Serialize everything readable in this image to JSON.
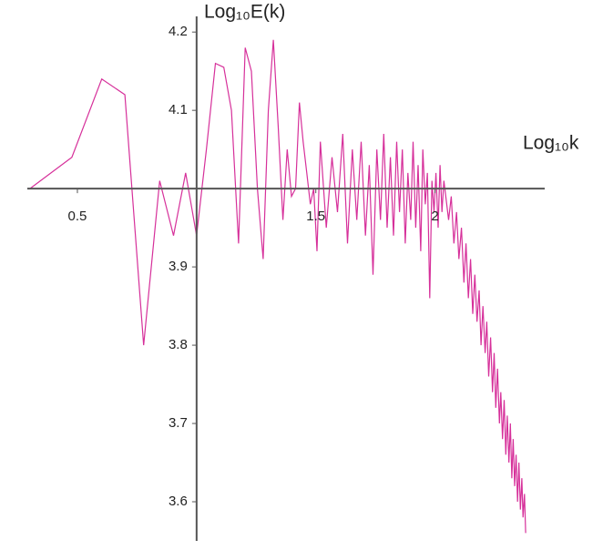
{
  "chart_data": {
    "type": "line",
    "y_label": "Log₁₀E(k)",
    "x_label": "Log₁₀k",
    "color": "#d6309a",
    "axes_origin": [
      1,
      4
    ],
    "xlim": [
      0.29,
      2.46
    ],
    "ylim": [
      3.55,
      4.22
    ],
    "xticks": [
      0.5,
      1.5,
      2
    ],
    "yticks": [
      3.6,
      3.7,
      3.8,
      3.9,
      4.1,
      4.2
    ],
    "x": [
      0.301,
      0.477,
      0.602,
      0.699,
      0.778,
      0.845,
      0.903,
      0.954,
      1.0,
      1.041,
      1.079,
      1.114,
      1.146,
      1.176,
      1.204,
      1.23,
      1.255,
      1.279,
      1.301,
      1.322,
      1.342,
      1.362,
      1.38,
      1.398,
      1.415,
      1.431,
      1.447,
      1.462,
      1.477,
      1.491,
      1.505,
      1.519,
      1.544,
      1.568,
      1.591,
      1.613,
      1.633,
      1.653,
      1.672,
      1.69,
      1.708,
      1.724,
      1.74,
      1.756,
      1.771,
      1.785,
      1.799,
      1.813,
      1.826,
      1.839,
      1.851,
      1.863,
      1.875,
      1.886,
      1.898,
      1.908,
      1.919,
      1.929,
      1.94,
      1.949,
      1.959,
      1.968,
      1.978,
      1.987,
      1.996,
      2.004,
      2.013,
      2.021,
      2.029,
      2.037,
      2.045,
      2.057,
      2.068,
      2.079,
      2.09,
      2.1,
      2.111,
      2.121,
      2.13,
      2.14,
      2.149,
      2.158,
      2.167,
      2.176,
      2.185,
      2.193,
      2.201,
      2.21,
      2.217,
      2.225,
      2.233,
      2.241,
      2.248,
      2.255,
      2.262,
      2.27,
      2.276,
      2.283,
      2.29,
      2.297,
      2.303,
      2.31,
      2.316,
      2.322,
      2.328,
      2.334,
      2.34,
      2.346,
      2.352,
      2.358,
      2.364,
      2.369,
      2.375,
      2.38
    ],
    "values": [
      4.0,
      4.04,
      4.14,
      4.12,
      3.8,
      4.01,
      3.94,
      4.02,
      3.94,
      4.05,
      4.16,
      4.155,
      4.1,
      3.93,
      4.18,
      4.15,
      4.0,
      3.91,
      4.1,
      4.19,
      4.08,
      3.96,
      4.05,
      3.99,
      4.0,
      4.11,
      4.06,
      4.02,
      3.98,
      4.0,
      3.92,
      4.06,
      3.95,
      4.04,
      3.97,
      4.07,
      3.93,
      4.05,
      3.96,
      4.06,
      3.94,
      4.03,
      3.89,
      4.05,
      3.96,
      4.07,
      3.95,
      4.04,
      3.94,
      4.06,
      3.97,
      4.05,
      3.93,
      4.02,
      3.96,
      4.06,
      3.95,
      4.03,
      3.92,
      4.05,
      3.98,
      4.02,
      3.86,
      4.01,
      3.97,
      4.02,
      3.95,
      4.03,
      3.97,
      4.01,
      3.99,
      3.96,
      3.99,
      3.93,
      3.97,
      3.91,
      3.95,
      3.88,
      3.93,
      3.86,
      3.91,
      3.84,
      3.89,
      3.83,
      3.87,
      3.8,
      3.85,
      3.79,
      3.83,
      3.76,
      3.81,
      3.74,
      3.79,
      3.72,
      3.77,
      3.7,
      3.74,
      3.68,
      3.73,
      3.66,
      3.71,
      3.65,
      3.7,
      3.63,
      3.68,
      3.62,
      3.66,
      3.6,
      3.65,
      3.59,
      3.63,
      3.58,
      3.61,
      3.56
    ]
  }
}
